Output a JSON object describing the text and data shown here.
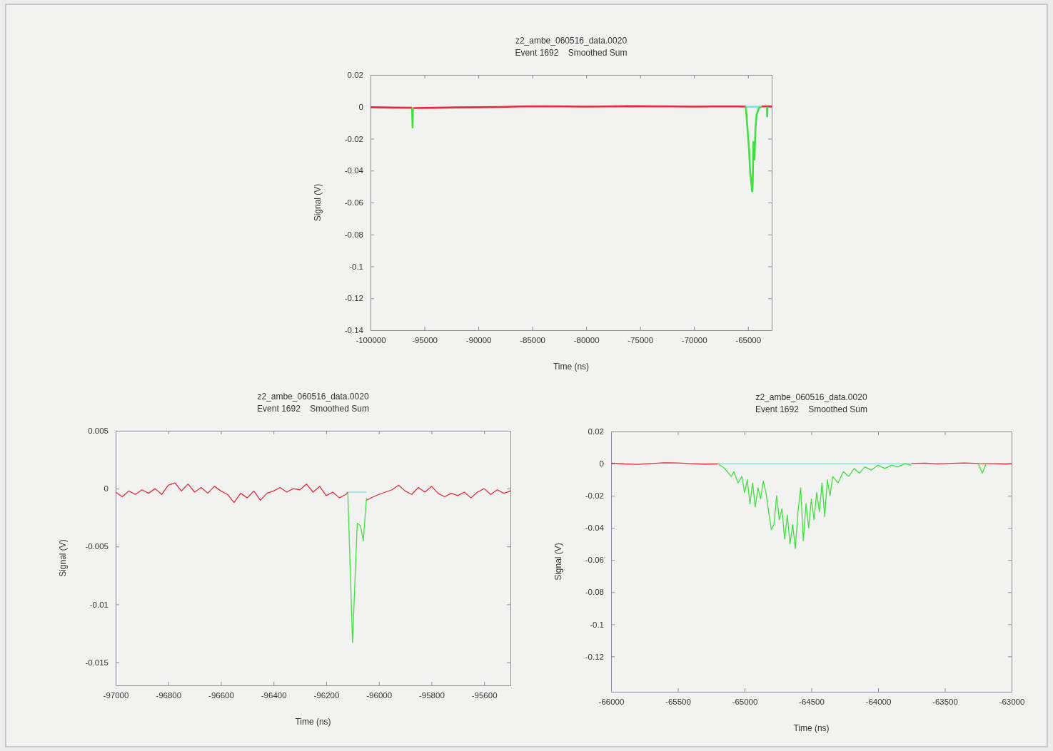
{
  "chart_data": [
    {
      "type": "line",
      "title": "z2_ambe_060516_data.0020",
      "subtitle": "Event 1692    Smoothed Sum",
      "xlabel": "Time (ns)",
      "ylabel": "Signal (V)",
      "xlim": [
        -100000,
        -62800
      ],
      "ylim": [
        -0.14,
        0.02
      ],
      "xticks": [
        -100000,
        -95000,
        -90000,
        -85000,
        -80000,
        -75000,
        -70000,
        -65000
      ],
      "yticks": [
        0.02,
        0,
        -0.02,
        -0.04,
        -0.06,
        -0.08,
        -0.1,
        -0.12,
        -0.14
      ],
      "grid": false,
      "series": [
        {
          "color": "#e8283a",
          "x": [
            -100000,
            -98000,
            -96150,
            -96100,
            -96050,
            -94000,
            -92000,
            -90000,
            -88000,
            -86000,
            -84000,
            -82000,
            -80000,
            -78000,
            -76000,
            -74000,
            -72000,
            -70000,
            -68000,
            -66000,
            -65200,
            -64500,
            -63750,
            -63000,
            -62800
          ],
          "values": [
            -0.0003,
            -0.0005,
            -0.0006,
            null,
            -0.0008,
            -0.0006,
            -0.0004,
            -0.0003,
            -0.0001,
            0.0002,
            0.0003,
            0.0002,
            0.0001,
            0.0002,
            0.0004,
            0.0003,
            0.0002,
            0.0001,
            0.0002,
            0.0002,
            0.0001,
            null,
            0.0002,
            0.0003,
            0.0002
          ]
        },
        {
          "color": "#80e0e0",
          "x": [
            -65200,
            -63750
          ],
          "values": [
            0,
            0
          ]
        },
        {
          "color": "#40e040",
          "x": [
            -96150,
            -96100,
            -96080,
            -96050,
            -96000,
            -65200,
            -65000,
            -64900,
            -64800,
            -64700,
            -64620,
            -64560,
            -64500,
            -64400,
            -64300,
            -64200,
            -64000,
            -63750,
            -63500,
            -63250,
            -63220,
            -63190
          ],
          "values": [
            -0.0006,
            -0.013,
            -0.004,
            -0.0008,
            null,
            0,
            -0.018,
            -0.027,
            -0.041,
            -0.047,
            -0.053,
            -0.048,
            -0.022,
            -0.033,
            -0.012,
            -0.005,
            -0.001,
            0,
            null,
            0,
            -0.006,
            0
          ]
        }
      ]
    },
    {
      "type": "line",
      "title": "z2_ambe_060516_data.0020",
      "subtitle": "Event 1692    Smoothed Sum",
      "xlabel": "Time (ns)",
      "ylabel": "Signal (V)",
      "xlim": [
        -97000,
        -95500
      ],
      "ylim": [
        -0.017,
        0.005
      ],
      "xticks": [
        -97000,
        -96800,
        -96600,
        -96400,
        -96200,
        -96000,
        -95800,
        -95600
      ],
      "yticks": [
        0.005,
        0,
        -0.005,
        -0.01,
        -0.015
      ],
      "grid": false,
      "series": [
        {
          "color": "#e8283a",
          "x": [
            -97000,
            -96975,
            -96950,
            -96925,
            -96900,
            -96875,
            -96850,
            -96825,
            -96800,
            -96775,
            -96750,
            -96725,
            -96700,
            -96675,
            -96650,
            -96625,
            -96600,
            -96575,
            -96550,
            -96525,
            -96500,
            -96475,
            -96450,
            -96425,
            -96400,
            -96375,
            -96350,
            -96325,
            -96300,
            -96275,
            -96250,
            -96225,
            -96200,
            -96175,
            -96150,
            -96125,
            -96118,
            -96090,
            -96047,
            -96020,
            -96000,
            -95975,
            -95950,
            -95925,
            -95900,
            -95875,
            -95850,
            -95825,
            -95800,
            -95775,
            -95750,
            -95725,
            -95700,
            -95675,
            -95650,
            -95625,
            -95600,
            -95575,
            -95550,
            -95525,
            -95500
          ],
          "values": [
            -0.0003,
            -0.0007,
            -0.0002,
            -0.0005,
            -0.0001,
            -0.0004,
            0,
            -0.0005,
            0.0003,
            0.0005,
            -0.0002,
            0.0004,
            -0.0003,
            0.0001,
            -0.0004,
            0.0002,
            -0.0002,
            -0.0005,
            -0.0012,
            -0.0004,
            -0.0008,
            -0.0002,
            -0.001,
            -0.0004,
            -0.0002,
            0.0001,
            -0.0003,
            0,
            -0.0001,
            0.0004,
            -0.0003,
            0.0002,
            -0.0006,
            -0.0003,
            -0.0008,
            -0.0005,
            -0.0003,
            null,
            -0.001,
            -0.0007,
            -0.0005,
            -0.0003,
            -0.0001,
            0.0003,
            -0.0002,
            -0.0005,
            0.0001,
            -0.0003,
            0.0002,
            -0.0004,
            -0.0007,
            -0.0004,
            -0.0006,
            -0.0003,
            -0.0008,
            -0.0003,
            0,
            -0.0005,
            -0.0001,
            -0.0004,
            -0.0002
          ]
        },
        {
          "color": "#80e0e0",
          "x": [
            -96118,
            -96047
          ],
          "values": [
            -0.0003,
            -0.0003
          ]
        },
        {
          "color": "#40e040",
          "x": [
            -96118,
            -96100,
            -96082,
            -96070,
            -96059,
            -96047
          ],
          "values": [
            -0.0003,
            -0.0133,
            -0.003,
            -0.0032,
            -0.0045,
            -0.0008
          ]
        }
      ]
    },
    {
      "type": "line",
      "title": "z2_ambe_060516_data.0020",
      "subtitle": "Event 1692    Smoothed Sum",
      "xlabel": "Time (ns)",
      "ylabel": "Signal (V)",
      "xlim": [
        -66000,
        -63000
      ],
      "ylim": [
        -0.142,
        0.02
      ],
      "xticks": [
        -66000,
        -65500,
        -65000,
        -64500,
        -64000,
        -63500,
        -63000
      ],
      "yticks": [
        0.02,
        0,
        -0.02,
        -0.04,
        -0.06,
        -0.08,
        -0.1,
        -0.12
      ],
      "grid": false,
      "series": [
        {
          "color": "#e8283a",
          "x": [
            -66000,
            -65900,
            -65800,
            -65700,
            -65600,
            -65500,
            -65400,
            -65300,
            -65200,
            -64500,
            -63750,
            -63650,
            -63550,
            -63450,
            -63350,
            -63250,
            -63150,
            -63050,
            -63000
          ],
          "values": [
            0.0003,
            -0.0002,
            -0.0005,
            0.0001,
            0.0005,
            0.0004,
            0,
            -0.0003,
            -0.0002,
            null,
            0.0001,
            0.0003,
            -0.0001,
            0.0002,
            0.0004,
            0.0001,
            0,
            -0.0002,
            0
          ]
        },
        {
          "color": "#80e0e0",
          "x": [
            -65200,
            -63750
          ],
          "values": [
            0,
            0
          ]
        },
        {
          "color": "#40e040",
          "x": [
            -65200,
            -65150,
            -65100,
            -65080,
            -65050,
            -65020,
            -65000,
            -64980,
            -64960,
            -64940,
            -64920,
            -64900,
            -64880,
            -64860,
            -64840,
            -64820,
            -64800,
            -64780,
            -64760,
            -64740,
            -64720,
            -64700,
            -64680,
            -64660,
            -64640,
            -64620,
            -64600,
            -64580,
            -64560,
            -64540,
            -64520,
            -64500,
            -64480,
            -64460,
            -64440,
            -64420,
            -64400,
            -64380,
            -64360,
            -64340,
            -64300,
            -64260,
            -64220,
            -64180,
            -64140,
            -64100,
            -64050,
            -64000,
            -63950,
            -63900,
            -63850,
            -63800,
            -63750,
            -63500,
            -63250,
            -63220,
            -63190
          ],
          "values": [
            0,
            -0.003,
            -0.008,
            -0.005,
            -0.012,
            -0.008,
            -0.018,
            -0.01,
            -0.025,
            -0.012,
            -0.027,
            -0.015,
            -0.022,
            -0.011,
            -0.018,
            -0.03,
            -0.041,
            -0.038,
            -0.02,
            -0.035,
            -0.028,
            -0.047,
            -0.032,
            -0.05,
            -0.038,
            -0.053,
            -0.03,
            -0.015,
            -0.048,
            -0.025,
            -0.04,
            -0.022,
            -0.035,
            -0.018,
            -0.03,
            -0.012,
            -0.033,
            -0.01,
            -0.02,
            -0.008,
            -0.012,
            -0.005,
            -0.008,
            -0.003,
            -0.006,
            -0.002,
            -0.004,
            -0.001,
            -0.003,
            -0.001,
            -0.002,
            0,
            -0.001,
            null,
            0,
            -0.006,
            0
          ]
        }
      ]
    }
  ]
}
